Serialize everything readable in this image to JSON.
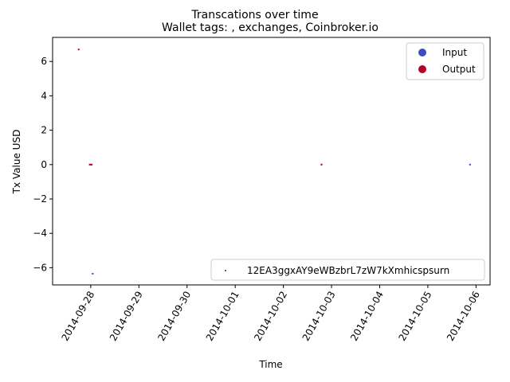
{
  "chart_data": {
    "type": "scatter",
    "suptitle": "Transcations over time",
    "title": "Wallet tags: , exchanges, Coinbroker.io",
    "xlabel": "Time",
    "ylabel": "Tx Value USD",
    "xlim": [
      "2014-09-27T05:00",
      "2014-10-06T07:00"
    ],
    "ylim": [
      -7.0,
      7.4
    ],
    "yticks": [
      -6,
      -4,
      -2,
      0,
      2,
      4,
      6
    ],
    "ytick_labels": [
      "−6",
      "−4",
      "−2",
      "0",
      "2",
      "4",
      "6"
    ],
    "xticks": [
      "2014-09-28",
      "2014-09-29",
      "2014-09-30",
      "2014-10-01",
      "2014-10-02",
      "2014-10-03",
      "2014-10-04",
      "2014-10-05",
      "2014-10-06"
    ],
    "grid": false,
    "colors": {
      "input": "#3b4cc0",
      "output": "#b40426",
      "wallet": "#1f77b4"
    },
    "series": [
      {
        "name": "Input",
        "color": "#3b4cc0",
        "points": [
          {
            "x": "2014-09-28T01:00",
            "y": -6.35
          },
          {
            "x": "2014-10-02T19:00",
            "y": 0.0
          },
          {
            "x": "2014-10-05T21:00",
            "y": 0.0
          }
        ]
      },
      {
        "name": "Output",
        "color": "#b40426",
        "points": [
          {
            "x": "2014-09-27T18:00",
            "y": 6.7
          },
          {
            "x": "2014-09-27T23:30",
            "y": 0.0
          },
          {
            "x": "2014-09-28T00:00",
            "y": 0.0
          },
          {
            "x": "2014-09-28T00:30",
            "y": 0.0
          },
          {
            "x": "2014-10-02T19:00",
            "y": 0.0
          }
        ]
      }
    ],
    "legend_top_right": [
      {
        "label": "Input",
        "color": "#3b4cc0"
      },
      {
        "label": "Output",
        "color": "#b40426"
      }
    ],
    "legend_bottom_right": [
      {
        "label": "12EA3ggxAY9eWBzbrL7zW7kXmhicspsurn",
        "color": "#1f77b4"
      }
    ]
  }
}
